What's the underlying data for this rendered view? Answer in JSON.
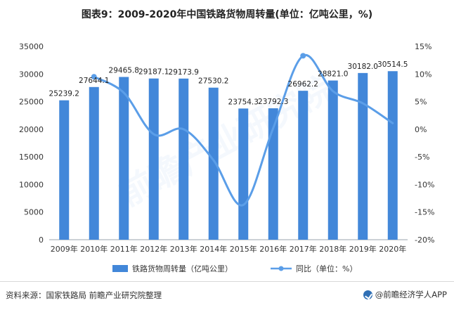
{
  "title": "图表9：2009-2020年中国铁路货物周转量(单位：亿吨公里，%)",
  "footer": {
    "source_label": "资料来源：",
    "source_text": "国家铁路局 前瞻产业研究院整理",
    "brand": "@前瞻经济学人APP",
    "brand_icon": "check-circle-icon"
  },
  "watermark": "前瞻产业研究院",
  "colors": {
    "bar": "#4287d9",
    "line": "#5b9ee8",
    "axis": "#9aa3ad",
    "text": "#333333"
  },
  "chart_data": {
    "type": "bar",
    "title": "图表9：2009-2020年中国铁路货物周转量(单位：亿吨公里，%)",
    "categories": [
      "2009年",
      "2010年",
      "2011年",
      "2012年",
      "2013年",
      "2014年",
      "2015年",
      "2016年",
      "2017年",
      "2018年",
      "2019年",
      "2020年"
    ],
    "series": [
      {
        "name": "铁路货物周转量（亿吨公里）",
        "type": "bar",
        "axis": "left",
        "values": [
          25239.2,
          27644.1,
          29465.8,
          29187.1,
          29173.9,
          27530.2,
          23754.3,
          23792.3,
          26962.2,
          28821.0,
          30182.0,
          30514.5
        ]
      },
      {
        "name": "同比（单位：%）",
        "type": "line",
        "axis": "right",
        "values": [
          null,
          9.5,
          6.6,
          -0.9,
          0.0,
          -5.6,
          -13.7,
          0.2,
          13.3,
          6.9,
          4.7,
          1.1
        ]
      }
    ],
    "y_left": {
      "min": 0,
      "max": 35000,
      "ticks": [
        0,
        5000,
        10000,
        15000,
        20000,
        25000,
        30000,
        35000
      ]
    },
    "y_right": {
      "min": -20,
      "max": 15,
      "ticks": [
        "-20%",
        "-15%",
        "-10%",
        "-5%",
        "0%",
        "5%",
        "10%",
        "15%"
      ]
    },
    "legend": "bottom",
    "grid": false
  }
}
